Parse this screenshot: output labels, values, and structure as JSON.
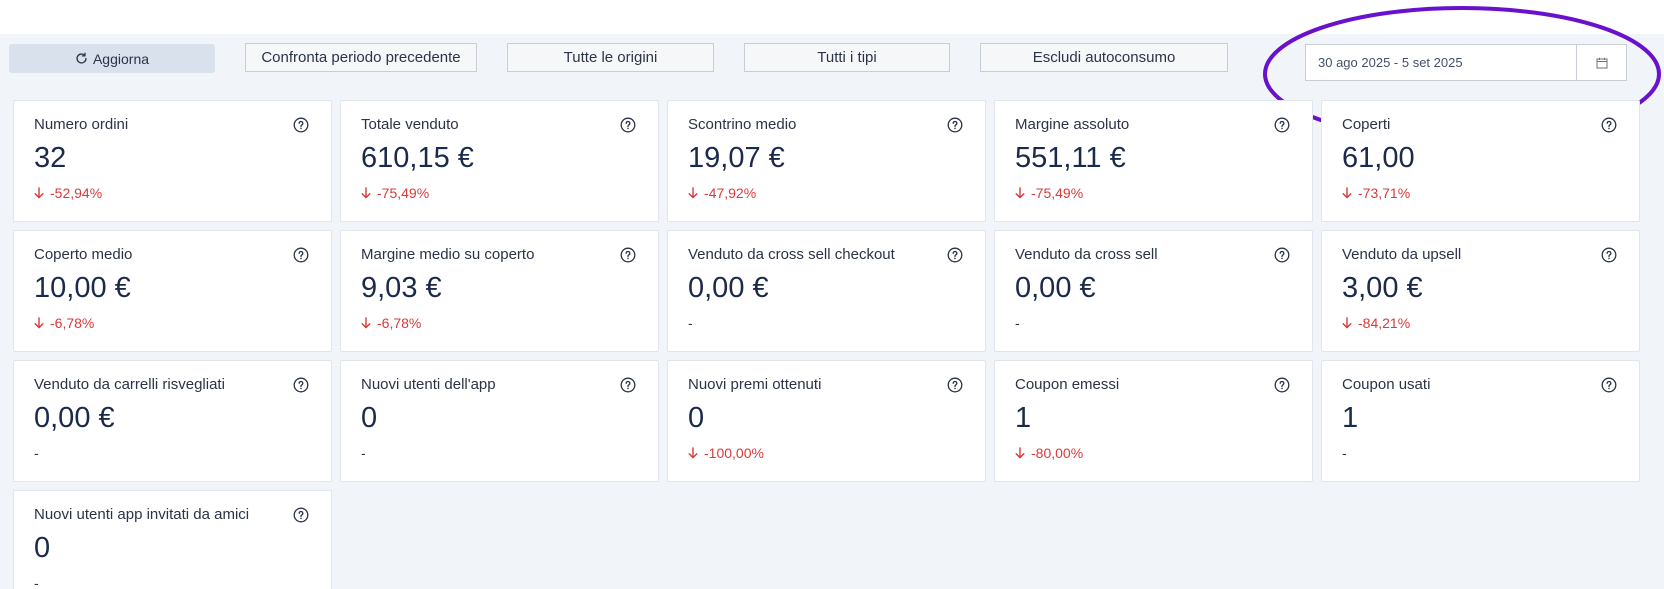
{
  "toolbar": {
    "refresh_label": "Aggiorna",
    "compare_label": "Confronta periodo precedente",
    "origins_label": "Tutte le origini",
    "types_label": "Tutti i tipi",
    "exclude_label": "Escludi autoconsumo"
  },
  "date_range": {
    "value": "30 ago 2025 - 5 set 2025"
  },
  "colors": {
    "negative": "#d93a3a",
    "highlight": "#6a11cb"
  },
  "icons": {
    "refresh": "refresh-icon",
    "calendar": "calendar-icon",
    "help": "help-circle-icon",
    "down": "arrow-down-icon"
  },
  "cards": [
    {
      "label": "Numero ordini",
      "value": "32",
      "delta": "-52,94%",
      "trend": "down"
    },
    {
      "label": "Totale venduto",
      "value": "610,15 €",
      "delta": "-75,49%",
      "trend": "down"
    },
    {
      "label": "Scontrino medio",
      "value": "19,07 €",
      "delta": "-47,92%",
      "trend": "down"
    },
    {
      "label": "Margine assoluto",
      "value": "551,11 €",
      "delta": "-75,49%",
      "trend": "down"
    },
    {
      "label": "Coperti",
      "value": "61,00",
      "delta": "-73,71%",
      "trend": "down"
    },
    {
      "label": "Coperto medio",
      "value": "10,00 €",
      "delta": "-6,78%",
      "trend": "down"
    },
    {
      "label": "Margine medio su coperto",
      "value": "9,03 €",
      "delta": "-6,78%",
      "trend": "down"
    },
    {
      "label": "Venduto da cross sell checkout",
      "value": "0,00 €",
      "delta": "-",
      "trend": "none"
    },
    {
      "label": "Venduto da cross sell",
      "value": "0,00 €",
      "delta": "-",
      "trend": "none"
    },
    {
      "label": "Venduto da upsell",
      "value": "3,00 €",
      "delta": "-84,21%",
      "trend": "down"
    },
    {
      "label": "Venduto da carrelli risvegliati",
      "value": "0,00 €",
      "delta": "-",
      "trend": "none"
    },
    {
      "label": "Nuovi utenti dell'app",
      "value": "0",
      "delta": "-",
      "trend": "none"
    },
    {
      "label": "Nuovi premi ottenuti",
      "value": "0",
      "delta": "-100,00%",
      "trend": "down"
    },
    {
      "label": "Coupon emessi",
      "value": "1",
      "delta": "-80,00%",
      "trend": "down"
    },
    {
      "label": "Coupon usati",
      "value": "1",
      "delta": "-",
      "trend": "none"
    },
    {
      "label": "Nuovi utenti app invitati da amici",
      "value": "0",
      "delta": "-",
      "trend": "none"
    }
  ]
}
